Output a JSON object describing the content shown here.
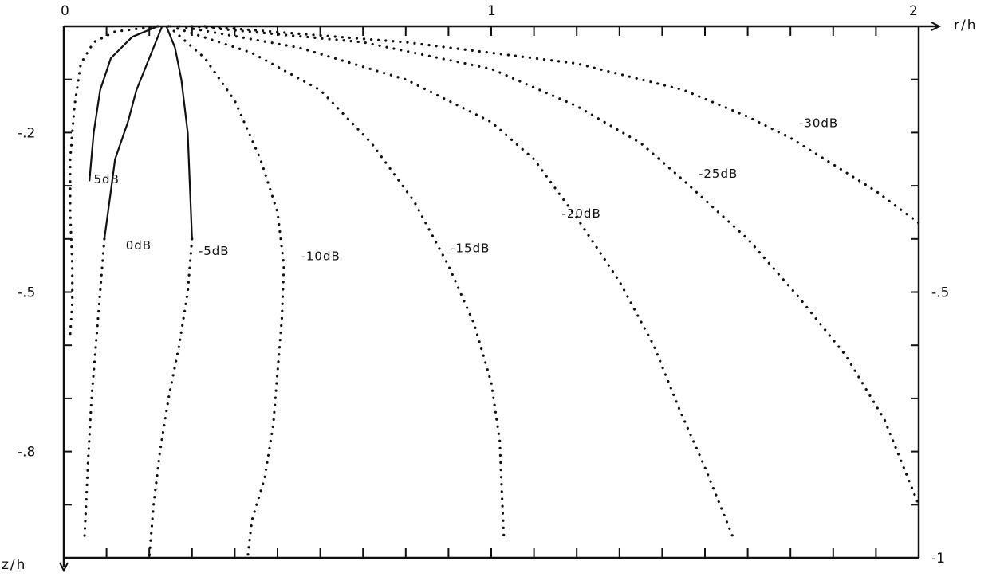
{
  "chart_data": {
    "type": "contour",
    "x_axis": {
      "label": "r/h",
      "range": [
        0,
        2
      ],
      "tick_labels": [
        "0",
        "1",
        "2"
      ],
      "ticks_at": [
        0,
        1,
        2
      ],
      "minor_ticks": 20
    },
    "y_axis_left": {
      "label": "z/h",
      "range": [
        0,
        -1
      ],
      "tick_labels": [
        "-.2",
        "-.5",
        "-.8"
      ],
      "ticks_at": [
        -0.2,
        -0.5,
        -0.8
      ],
      "minor_ticks": 10
    },
    "y_axis_right": {
      "tick_labels": [
        "-.5",
        "-1"
      ],
      "ticks_at": [
        -0.5,
        -1.0
      ]
    },
    "source_position": {
      "r": 0.23,
      "z": 0
    },
    "grid": false,
    "legend": "none",
    "series": [
      {
        "name": "5dB",
        "style": "dotted",
        "label_at": {
          "r": 0.07,
          "z": -0.295
        },
        "points": [
          [
            0.22,
            0
          ],
          [
            0.12,
            -0.01
          ],
          [
            0.07,
            -0.03
          ],
          [
            0.04,
            -0.07
          ],
          [
            0.025,
            -0.15
          ],
          [
            0.015,
            -0.25
          ],
          [
            0.015,
            -0.35
          ],
          [
            0.02,
            -0.45
          ],
          [
            0.02,
            -0.52
          ],
          [
            0.015,
            -0.58
          ]
        ]
      },
      {
        "name": "5dB",
        "style": "solid",
        "points": [
          [
            0.22,
            0
          ],
          [
            0.16,
            -0.02
          ],
          [
            0.11,
            -0.06
          ],
          [
            0.085,
            -0.12
          ],
          [
            0.07,
            -0.2
          ],
          [
            0.06,
            -0.29
          ]
        ]
      },
      {
        "name": "0dB",
        "style": "solid",
        "points": [
          [
            0.23,
            0
          ],
          [
            0.2,
            -0.06
          ],
          [
            0.17,
            -0.12
          ],
          [
            0.15,
            -0.18
          ],
          [
            0.12,
            -0.25
          ],
          [
            0.11,
            -0.31
          ],
          [
            0.095,
            -0.4
          ]
        ]
      },
      {
        "name": "0dB",
        "style": "dotted",
        "label_at": {
          "r": 0.145,
          "z": -0.42
        },
        "points": [
          [
            0.095,
            -0.4
          ],
          [
            0.085,
            -0.5
          ],
          [
            0.075,
            -0.6
          ],
          [
            0.065,
            -0.7
          ],
          [
            0.058,
            -0.8
          ],
          [
            0.052,
            -0.9
          ],
          [
            0.048,
            -0.97
          ]
        ]
      },
      {
        "name": "-5dB",
        "style": "solid",
        "points": [
          [
            0.24,
            0
          ],
          [
            0.26,
            -0.04
          ],
          [
            0.275,
            -0.1
          ],
          [
            0.29,
            -0.2
          ],
          [
            0.295,
            -0.3
          ],
          [
            0.3,
            -0.4
          ]
        ]
      },
      {
        "name": "-5dB",
        "style": "dotted",
        "label_at": {
          "r": 0.315,
          "z": -0.43
        },
        "points": [
          [
            0.3,
            -0.4
          ],
          [
            0.29,
            -0.5
          ],
          [
            0.27,
            -0.6
          ],
          [
            0.245,
            -0.7
          ],
          [
            0.225,
            -0.8
          ],
          [
            0.21,
            -0.9
          ],
          [
            0.2,
            -1.0
          ]
        ]
      },
      {
        "name": "-10dB",
        "style": "dotted",
        "label_at": {
          "r": 0.555,
          "z": -0.44
        },
        "points": [
          [
            0.245,
            0
          ],
          [
            0.33,
            -0.06
          ],
          [
            0.4,
            -0.14
          ],
          [
            0.46,
            -0.25
          ],
          [
            0.5,
            -0.35
          ],
          [
            0.515,
            -0.45
          ],
          [
            0.51,
            -0.55
          ],
          [
            0.5,
            -0.65
          ],
          [
            0.49,
            -0.75
          ],
          [
            0.47,
            -0.85
          ],
          [
            0.44,
            -0.93
          ],
          [
            0.43,
            -1.0
          ]
        ]
      },
      {
        "name": "-15dB",
        "style": "dotted",
        "label_at": {
          "r": 0.905,
          "z": -0.425
        },
        "points": [
          [
            0.25,
            0
          ],
          [
            0.44,
            -0.05
          ],
          [
            0.6,
            -0.12
          ],
          [
            0.72,
            -0.22
          ],
          [
            0.82,
            -0.33
          ],
          [
            0.9,
            -0.45
          ],
          [
            0.96,
            -0.56
          ],
          [
            1.0,
            -0.67
          ],
          [
            1.02,
            -0.78
          ],
          [
            1.025,
            -0.88
          ],
          [
            1.03,
            -0.97
          ]
        ]
      },
      {
        "name": "-20dB",
        "style": "dotted",
        "label_at": {
          "r": 1.165,
          "z": -0.36
        },
        "points": [
          [
            0.27,
            0
          ],
          [
            0.55,
            -0.04
          ],
          [
            0.8,
            -0.1
          ],
          [
            1.0,
            -0.18
          ],
          [
            1.1,
            -0.25
          ],
          [
            1.2,
            -0.36
          ],
          [
            1.3,
            -0.48
          ],
          [
            1.38,
            -0.6
          ],
          [
            1.44,
            -0.72
          ],
          [
            1.5,
            -0.83
          ],
          [
            1.55,
            -0.93
          ],
          [
            1.57,
            -0.97
          ]
        ]
      },
      {
        "name": "-25dB",
        "style": "dotted",
        "label_at": {
          "r": 1.485,
          "z": -0.285
        },
        "points": [
          [
            0.3,
            0
          ],
          [
            0.7,
            -0.03
          ],
          [
            1.0,
            -0.08
          ],
          [
            1.2,
            -0.15
          ],
          [
            1.35,
            -0.22
          ],
          [
            1.45,
            -0.29
          ],
          [
            1.6,
            -0.4
          ],
          [
            1.72,
            -0.51
          ],
          [
            1.83,
            -0.62
          ],
          [
            1.92,
            -0.74
          ],
          [
            1.97,
            -0.84
          ],
          [
            2.0,
            -0.9
          ]
        ]
      },
      {
        "name": "-30dB",
        "style": "dotted",
        "label_at": {
          "r": 1.72,
          "z": -0.19
        },
        "points": [
          [
            0.33,
            0
          ],
          [
            0.8,
            -0.03
          ],
          [
            1.2,
            -0.07
          ],
          [
            1.45,
            -0.12
          ],
          [
            1.6,
            -0.17
          ],
          [
            1.7,
            -0.21
          ],
          [
            1.8,
            -0.26
          ],
          [
            1.9,
            -0.31
          ],
          [
            2.0,
            -0.37
          ]
        ]
      }
    ],
    "labels": [
      {
        "text": "5dB"
      },
      {
        "text": "0dB"
      },
      {
        "text": "-5dB"
      },
      {
        "text": "-10dB"
      },
      {
        "text": "-15dB"
      },
      {
        "text": "-20dB"
      },
      {
        "text": "-25dB"
      },
      {
        "text": "-30dB"
      }
    ],
    "label_text": {
      "5dB": "5dB",
      "0dB": "0dB",
      "-5dB": "-5dB",
      "-10dB": "-10dB",
      "-15dB": "-15dB",
      "-20dB": "-20dB",
      "-25dB": "-25dB",
      "-30dB": "-30dB"
    }
  }
}
